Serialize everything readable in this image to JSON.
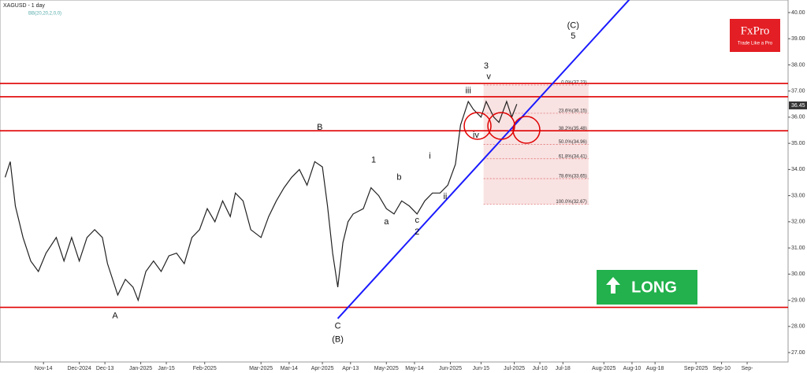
{
  "chart_data": {
    "type": "line",
    "title": "XAGUSD - 1 day",
    "subtitle": "BB(20,20,2,0,0)",
    "logo": "FxPro",
    "tagline": "Trade Like a Pro",
    "signal": "LONG",
    "color": "#222222",
    "x": [
      2,
      4,
      6,
      9,
      12,
      15,
      18,
      22,
      25,
      28,
      31,
      34,
      37,
      40,
      42,
      46,
      49,
      52,
      54,
      57,
      60,
      63,
      66,
      69,
      72,
      75,
      78,
      81,
      84,
      87,
      90,
      92,
      95,
      98,
      102,
      105,
      108,
      111,
      114,
      117,
      120,
      123,
      126,
      128,
      130,
      132,
      134,
      136,
      138,
      142,
      145,
      148,
      151,
      154,
      157,
      160,
      163,
      166,
      169,
      172,
      175,
      178,
      180,
      183,
      185,
      188,
      190,
      193,
      195,
      198,
      200,
      202
    ],
    "values": [
      33.7,
      34.3,
      32.6,
      31.4,
      30.5,
      30.1,
      30.8,
      31.4,
      30.5,
      31.4,
      30.5,
      31.4,
      31.7,
      31.4,
      30.4,
      29.2,
      29.8,
      29.5,
      29.0,
      30.1,
      30.5,
      30.1,
      30.7,
      30.8,
      30.4,
      31.4,
      31.7,
      32.5,
      32.0,
      32.8,
      32.2,
      33.1,
      32.8,
      31.7,
      31.4,
      32.2,
      32.8,
      33.3,
      33.7,
      34.0,
      33.4,
      34.3,
      34.1,
      32.6,
      30.8,
      29.5,
      31.2,
      32.0,
      32.3,
      32.5,
      33.3,
      33.0,
      32.5,
      32.3,
      32.8,
      32.6,
      32.3,
      32.8,
      33.1,
      33.1,
      33.4,
      34.2,
      35.7,
      36.6,
      36.3,
      36.0,
      36.6,
      36.0,
      35.8,
      36.6,
      36.0,
      36.5
    ],
    "xlim": [
      0,
      308
    ],
    "xticks": [
      {
        "value": 17,
        "label": "Nov-14"
      },
      {
        "value": 31,
        "label": "Dec-2024"
      },
      {
        "value": 41,
        "label": "Dec-13"
      },
      {
        "value": 55,
        "label": "Jan-2025"
      },
      {
        "value": 65,
        "label": "Jan-15"
      },
      {
        "value": 80,
        "label": "Feb-2025"
      },
      {
        "value": 102,
        "label": "Mar-2025"
      },
      {
        "value": 113,
        "label": "Mar-14"
      },
      {
        "value": 126,
        "label": "Apr-2025"
      },
      {
        "value": 137,
        "label": "Apr-13"
      },
      {
        "value": 151,
        "label": "May-2025"
      },
      {
        "value": 162,
        "label": "May-14"
      },
      {
        "value": 176,
        "label": "Jun-2025"
      },
      {
        "value": 188,
        "label": "Jun-15"
      },
      {
        "value": 201,
        "label": "Jul-2025"
      },
      {
        "value": 211,
        "label": "Jul-10"
      },
      {
        "value": 220,
        "label": "Jul-18"
      },
      {
        "value": 236,
        "label": "Aug-2025"
      },
      {
        "value": 247,
        "label": "Aug-10"
      },
      {
        "value": 256,
        "label": "Aug-18"
      },
      {
        "value": 272,
        "label": "Sep-2025"
      },
      {
        "value": 282,
        "label": "Sep-10"
      },
      {
        "value": 292,
        "label": "Sep-"
      }
    ],
    "ylim": [
      26.64,
      40.48
    ],
    "yticks": [
      {
        "value": 27,
        "label": "27.00"
      },
      {
        "value": 28,
        "label": "28.00"
      },
      {
        "value": 29,
        "label": "29.00"
      },
      {
        "value": 30,
        "label": "30.00"
      },
      {
        "value": 31,
        "label": "31.00"
      },
      {
        "value": 32,
        "label": "32.00"
      },
      {
        "value": 33,
        "label": "33.00"
      },
      {
        "value": 34,
        "label": "34.00"
      },
      {
        "value": 35,
        "label": "35.00"
      },
      {
        "value": 36,
        "label": "36.00"
      },
      {
        "value": 37,
        "label": "37.00"
      },
      {
        "value": 38,
        "label": "38.00"
      },
      {
        "value": 39,
        "label": "39.00"
      },
      {
        "value": 40,
        "label": "40.00"
      }
    ],
    "last_price": 36.45,
    "hlines": [
      37.29,
      36.78,
      35.48,
      28.73
    ],
    "hline_color": "#e00000",
    "trendline": {
      "x": [
        132,
        246
      ],
      "y": [
        28.3,
        40.5
      ],
      "color": "#1a1aff"
    },
    "fib_range": [
      189,
      230
    ],
    "fib_levels": [
      {
        "value": 37.23,
        "label": "0.0%(37.23)"
      },
      {
        "value": 36.15,
        "label": "23.6%(36.15)"
      },
      {
        "value": 35.48,
        "label": "38.2%(35.48)"
      },
      {
        "value": 34.96,
        "label": "50.0%(34.96)"
      },
      {
        "value": 34.41,
        "label": "61.8%(34.41)"
      },
      {
        "value": 33.65,
        "label": "78.6%(33.65)"
      },
      {
        "value": 32.67,
        "label": "100.0%(32.67)"
      }
    ],
    "annotations": [
      {
        "text": "B",
        "x": 125,
        "y": 35.6
      },
      {
        "text": "A",
        "x": 45,
        "y": 28.4
      },
      {
        "text": "C",
        "x": 132,
        "y": 28.0
      },
      {
        "text": "(B)",
        "x": 132,
        "y": 27.5
      },
      {
        "text": "(C)",
        "x": 224,
        "y": 39.5
      },
      {
        "text": "5",
        "x": 224,
        "y": 39.1
      },
      {
        "text": "3",
        "x": 190,
        "y": 37.95
      },
      {
        "text": "1",
        "x": 146,
        "y": 34.35
      },
      {
        "text": "2",
        "x": 163,
        "y": 31.6
      },
      {
        "text": "iii",
        "x": 183,
        "y": 37.0
      },
      {
        "text": "iv",
        "x": 186,
        "y": 35.3
      },
      {
        "text": "v",
        "x": 191,
        "y": 37.55
      },
      {
        "text": "i",
        "x": 168,
        "y": 34.5
      },
      {
        "text": "ii",
        "x": 174,
        "y": 32.95
      },
      {
        "text": "a",
        "x": 151,
        "y": 32.0
      },
      {
        "text": "b",
        "x": 156,
        "y": 33.7
      },
      {
        "text": "c",
        "x": 163,
        "y": 32.05
      }
    ]
  }
}
